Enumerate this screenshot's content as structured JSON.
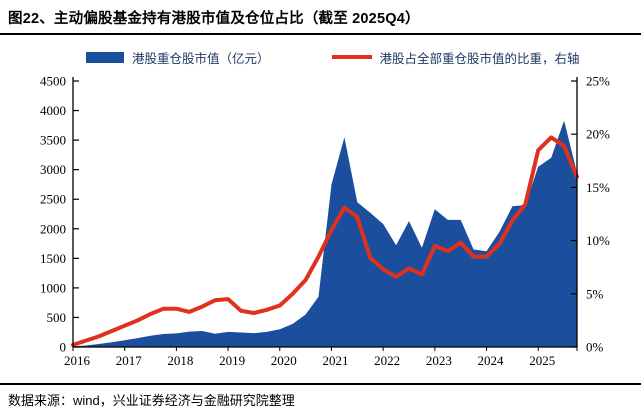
{
  "header": {
    "title": "图22、主动偏股基金持有港股市值及仓位占比（截至 2025Q4）"
  },
  "legend": {
    "area_label": "港股重仓股市值（亿元）",
    "line_label": "港股占全部重仓股市值的比重，右轴"
  },
  "footer": {
    "source": "数据来源：wind，兴业证券经济与金融研究院整理"
  },
  "colors": {
    "area": "#1b4f9e",
    "line": "#e0301e",
    "axis": "#000000",
    "legend_text": "#1f3864"
  },
  "chart_data": {
    "type": "combo-area-line",
    "title": "主动偏股基金持有港股市值及仓位占比",
    "x_unit": "quarter",
    "categories": [
      "2016Q1",
      "2016Q2",
      "2016Q3",
      "2016Q4",
      "2017Q1",
      "2017Q2",
      "2017Q3",
      "2017Q4",
      "2018Q1",
      "2018Q2",
      "2018Q3",
      "2018Q4",
      "2019Q1",
      "2019Q2",
      "2019Q3",
      "2019Q4",
      "2020Q1",
      "2020Q2",
      "2020Q3",
      "2020Q4",
      "2021Q1",
      "2021Q2",
      "2021Q3",
      "2021Q4",
      "2022Q1",
      "2022Q2",
      "2022Q3",
      "2022Q4",
      "2023Q1",
      "2023Q2",
      "2023Q3",
      "2023Q4",
      "2024Q1",
      "2024Q2",
      "2024Q3",
      "2024Q4",
      "2025Q1",
      "2025Q2",
      "2025Q3",
      "2025Q4"
    ],
    "x_tick_labels": [
      "2016",
      "2017",
      "2018",
      "2019",
      "2020",
      "2021",
      "2022",
      "2023",
      "2024",
      "2025"
    ],
    "series": [
      {
        "name": "港股重仓股市值（亿元）",
        "type": "area",
        "axis": "left",
        "color": "#1b4f9e",
        "values": [
          10,
          25,
          50,
          80,
          115,
          150,
          190,
          220,
          230,
          260,
          270,
          225,
          255,
          245,
          235,
          255,
          300,
          390,
          550,
          850,
          2750,
          3550,
          2450,
          2270,
          2080,
          1720,
          2130,
          1680,
          2330,
          2150,
          2150,
          1650,
          1620,
          1950,
          2380,
          2400,
          3050,
          3200,
          3830,
          2950
        ]
      },
      {
        "name": "港股占全部重仓股市值的比重，右轴",
        "type": "line",
        "axis": "right",
        "color": "#e0301e",
        "values_pct": [
          0.2,
          0.6,
          1.0,
          1.5,
          2.0,
          2.5,
          3.1,
          3.6,
          3.6,
          3.3,
          3.8,
          4.4,
          4.5,
          3.4,
          3.2,
          3.5,
          3.9,
          5.0,
          6.3,
          8.5,
          11.0,
          13.1,
          12.2,
          8.4,
          7.3,
          6.6,
          7.4,
          6.8,
          9.5,
          9.0,
          9.8,
          8.5,
          8.5,
          9.7,
          11.9,
          13.4,
          18.5,
          19.7,
          18.9,
          16.0
        ]
      }
    ],
    "left_axis": {
      "min": 0,
      "max": 4500,
      "step": 500
    },
    "right_axis": {
      "min": 0,
      "max": 25,
      "step": 5,
      "format": "percent"
    },
    "grid": false,
    "legend_position": "top"
  }
}
